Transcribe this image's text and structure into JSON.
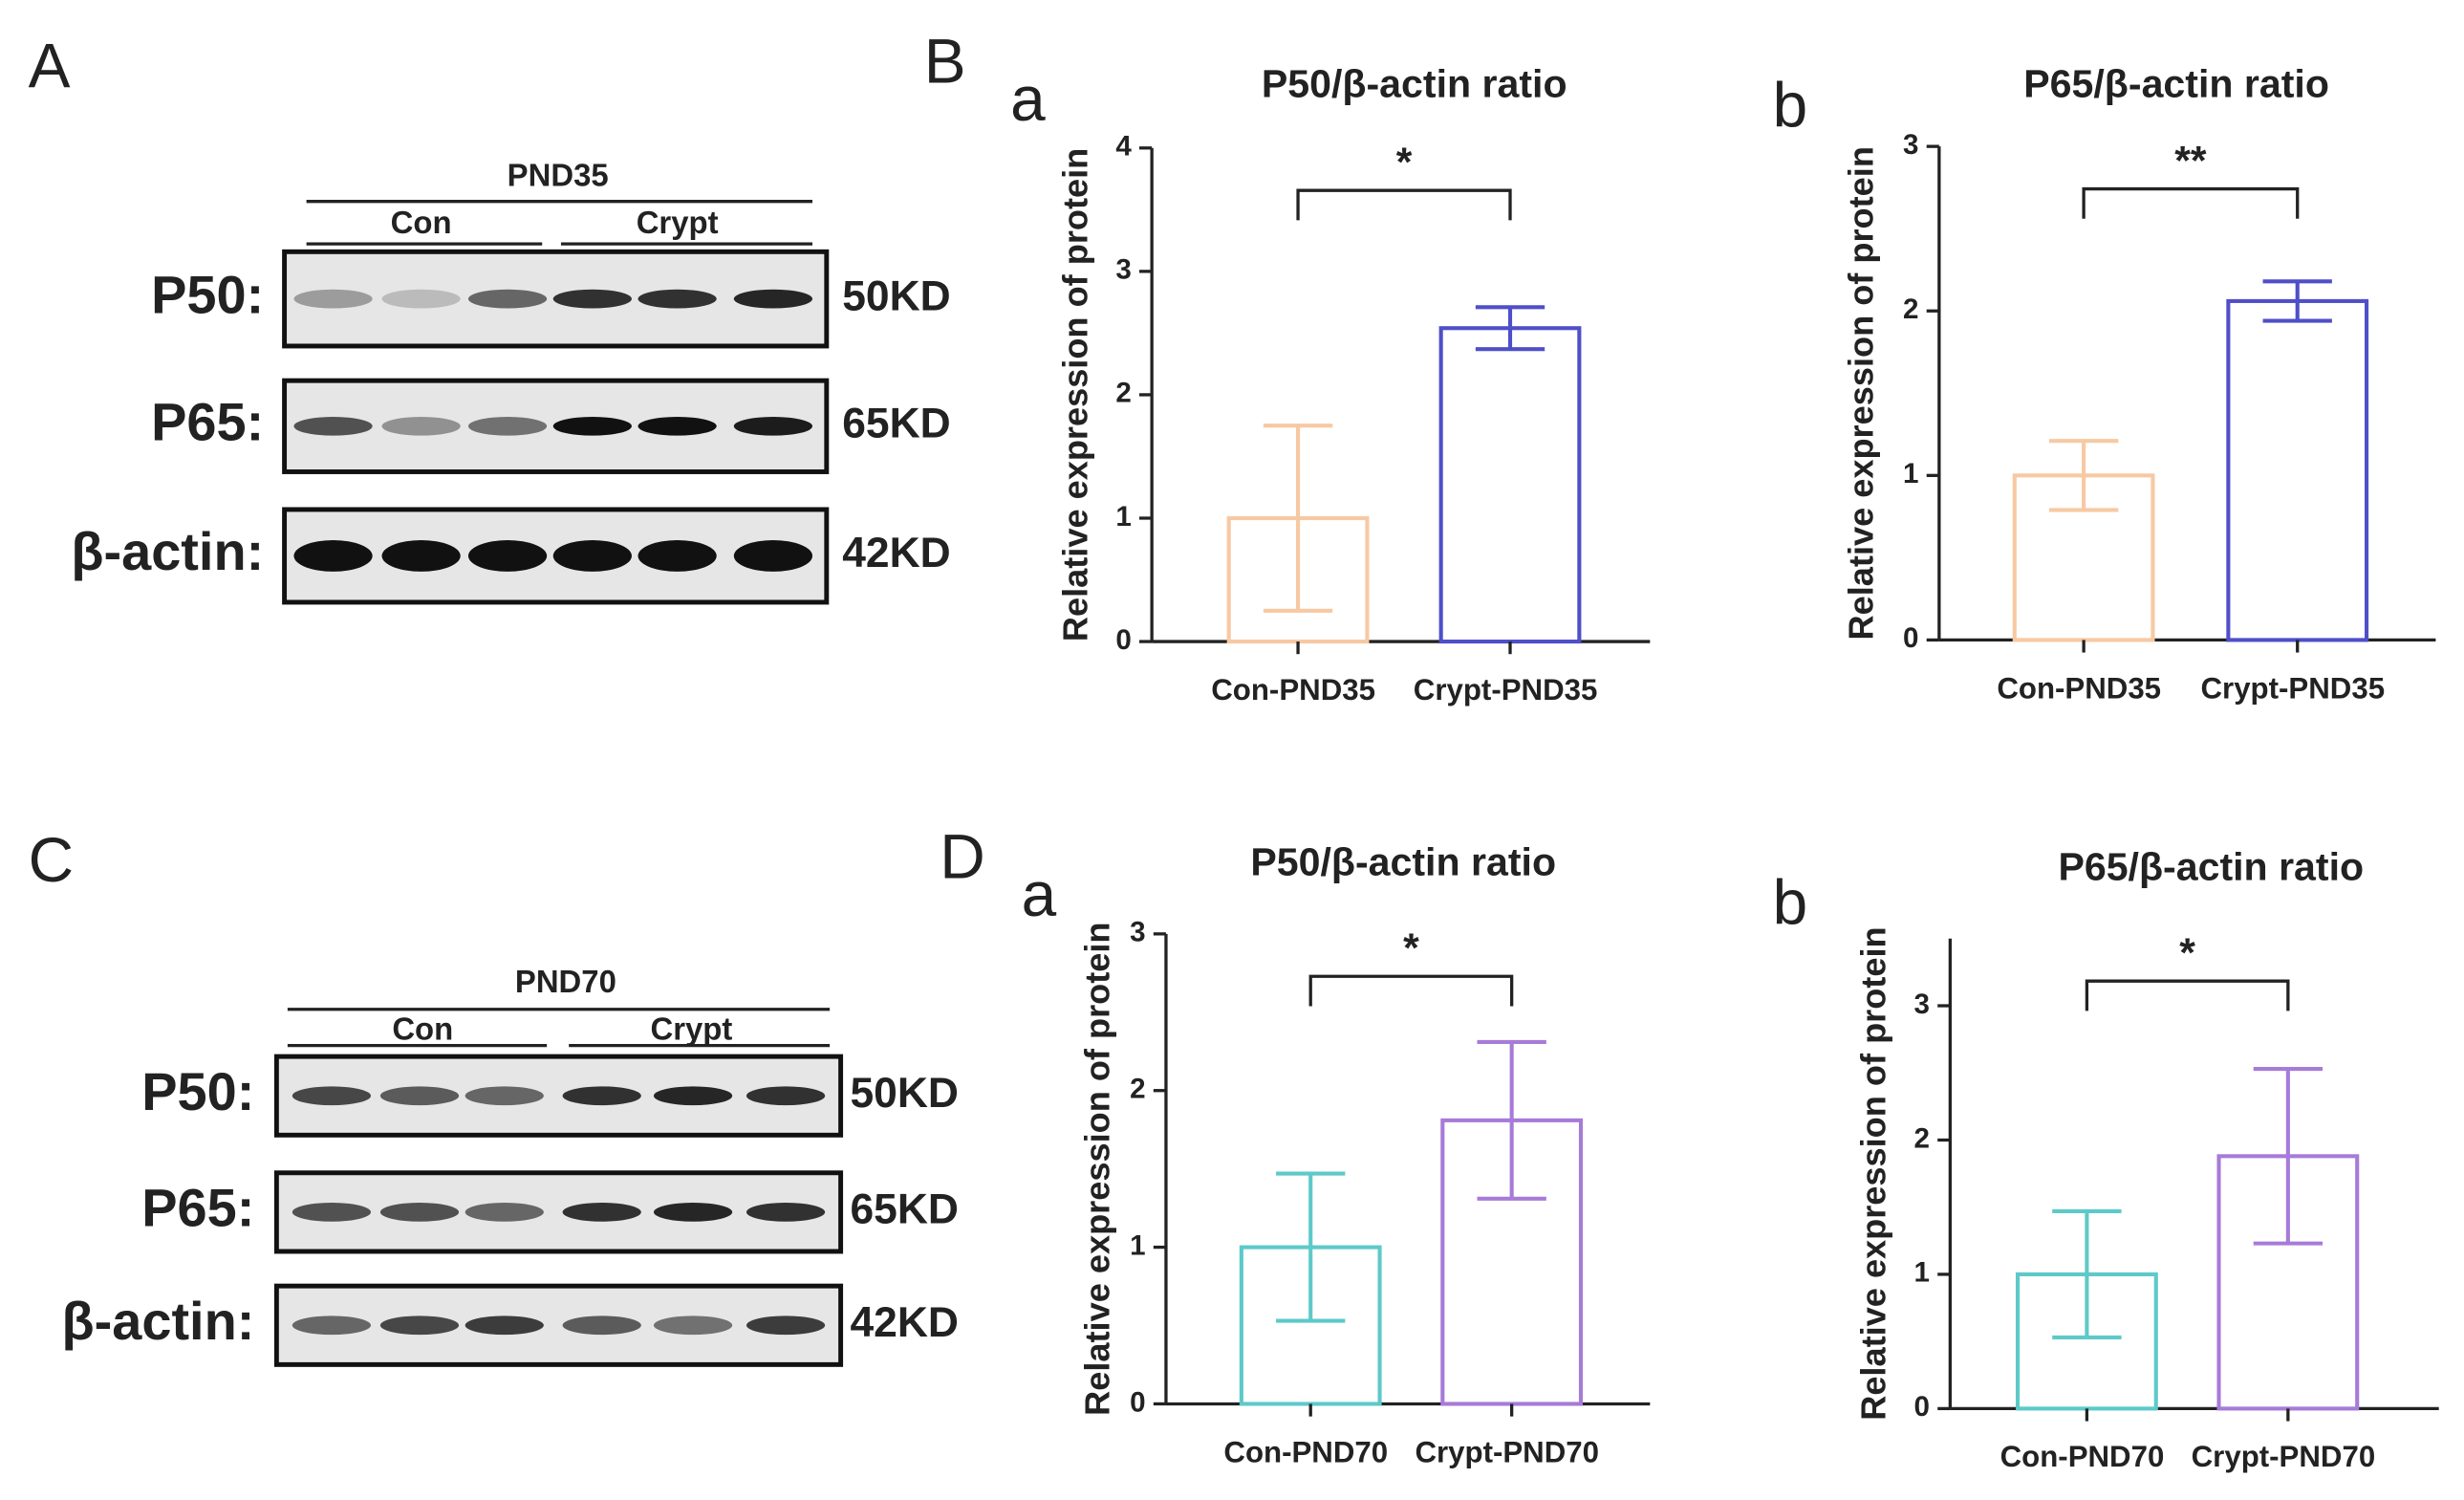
{
  "blots": [
    {
      "panel": "A",
      "group": "PND35",
      "subgroups": [
        "Con",
        "Crypt"
      ],
      "rows": [
        "P50:",
        "P65:",
        "β-actin:"
      ],
      "sizes": [
        "50KD",
        "65KD",
        "42KD"
      ]
    },
    {
      "panel": "C",
      "group": "PND70",
      "subgroups": [
        "Con",
        "Crypt"
      ],
      "rows": [
        "P50:",
        "P65:",
        "β-actin:"
      ],
      "sizes": [
        "50KD",
        "65KD",
        "42KD"
      ]
    }
  ],
  "panel_labels": [
    "B",
    "D"
  ],
  "chart_data": [
    {
      "type": "bar",
      "panel": "a",
      "title": "P50/β-actin ratio",
      "y_label": "Relative expression of protein",
      "categories": [
        "Con-PND35",
        "Crypt-PND35"
      ],
      "values": [
        1,
        2.54
      ],
      "errors": [
        0.75,
        0.17
      ],
      "colors": [
        "#f7c9a3",
        "#4f4fc9"
      ],
      "significance": "*",
      "ylim": [
        0,
        4
      ],
      "yticks": [
        0,
        1,
        2,
        3,
        4
      ]
    },
    {
      "type": "bar",
      "panel": "b",
      "title": "P65/β-actin ratio",
      "y_label": "Relative expression of protein",
      "categories": [
        "Con-PND35",
        "Crypt-PND35"
      ],
      "values": [
        1,
        2.06
      ],
      "errors": [
        0.21,
        0.12
      ],
      "colors": [
        "#f7c9a3",
        "#4f4fc9"
      ],
      "significance": "**",
      "ylim": [
        0,
        3
      ],
      "yticks": [
        0,
        1,
        2,
        3
      ]
    },
    {
      "type": "bar",
      "panel": "a",
      "title": "P50/β-actin ratio",
      "y_label": "Relative expression of protein",
      "categories": [
        "Con-PND70",
        "Crypt-PND70"
      ],
      "values": [
        1,
        1.81
      ],
      "errors": [
        0.47,
        0.5
      ],
      "colors": [
        "#5ec9c9",
        "#a77bd8"
      ],
      "significance": "*",
      "ylim": [
        0,
        3
      ],
      "yticks": [
        0,
        1,
        2,
        3
      ]
    },
    {
      "type": "bar",
      "panel": "b",
      "title": "P65/β-actin ratio",
      "y_label": "Relative expression of protein",
      "categories": [
        "Con-PND70",
        "Crypt-PND70"
      ],
      "values": [
        1,
        1.88
      ],
      "errors": [
        0.47,
        0.65
      ],
      "colors": [
        "#5ec9c9",
        "#a77bd8"
      ],
      "significance": "*",
      "ylim": [
        0,
        3.5
      ],
      "yticks": [
        0,
        1,
        2,
        3
      ]
    }
  ]
}
